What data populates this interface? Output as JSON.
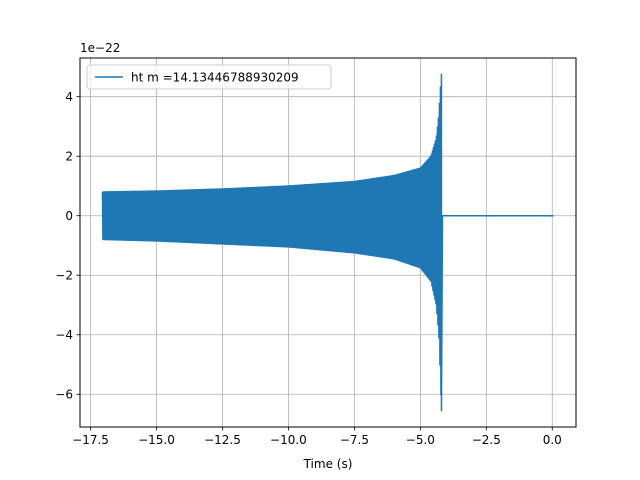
{
  "chart_data": {
    "type": "line",
    "title": "",
    "xlabel": "Time (s)",
    "ylabel": "",
    "y_offset_label": "1e−22",
    "xlim": [
      -17.9,
      0.9
    ],
    "ylim": [
      -7.1,
      5.3
    ],
    "x_ticks": [
      -17.5,
      -15.0,
      -12.5,
      -10.0,
      -7.5,
      -5.0,
      -2.5,
      0.0
    ],
    "x_tick_labels": [
      "−17.5",
      "−15.0",
      "−12.5",
      "−10.0",
      "−7.5",
      "−5.0",
      "−2.5",
      "0.0"
    ],
    "y_ticks": [
      -6,
      -4,
      -2,
      0,
      2,
      4
    ],
    "y_tick_labels": [
      "−6",
      "−4",
      "−2",
      "0",
      "2",
      "4"
    ],
    "grid": true,
    "legend_position": "upper-left",
    "series": [
      {
        "name": "ht m =14.13446788930209",
        "color": "#1f77b4",
        "pre_merger_start": -17.05,
        "merger_time": -4.2,
        "end_time": 0.05,
        "envelope_upper": {
          "x": [
            -17.05,
            -15.0,
            -12.5,
            -10.0,
            -7.5,
            -6.0,
            -5.0,
            -4.6,
            -4.4,
            -4.3,
            -4.25,
            -4.2
          ],
          "y": [
            0.8,
            0.83,
            0.9,
            1.0,
            1.15,
            1.35,
            1.6,
            2.0,
            2.6,
            3.4,
            4.2,
            4.75
          ]
        },
        "envelope_lower": {
          "x": [
            -17.05,
            -15.0,
            -12.5,
            -10.0,
            -7.5,
            -6.0,
            -5.0,
            -4.6,
            -4.4,
            -4.3,
            -4.25,
            -4.2
          ],
          "y": [
            -0.8,
            -0.85,
            -0.95,
            -1.05,
            -1.25,
            -1.45,
            -1.75,
            -2.2,
            -3.0,
            -4.0,
            -5.2,
            -6.55
          ]
        },
        "post_merger_value": 0.0
      }
    ]
  }
}
